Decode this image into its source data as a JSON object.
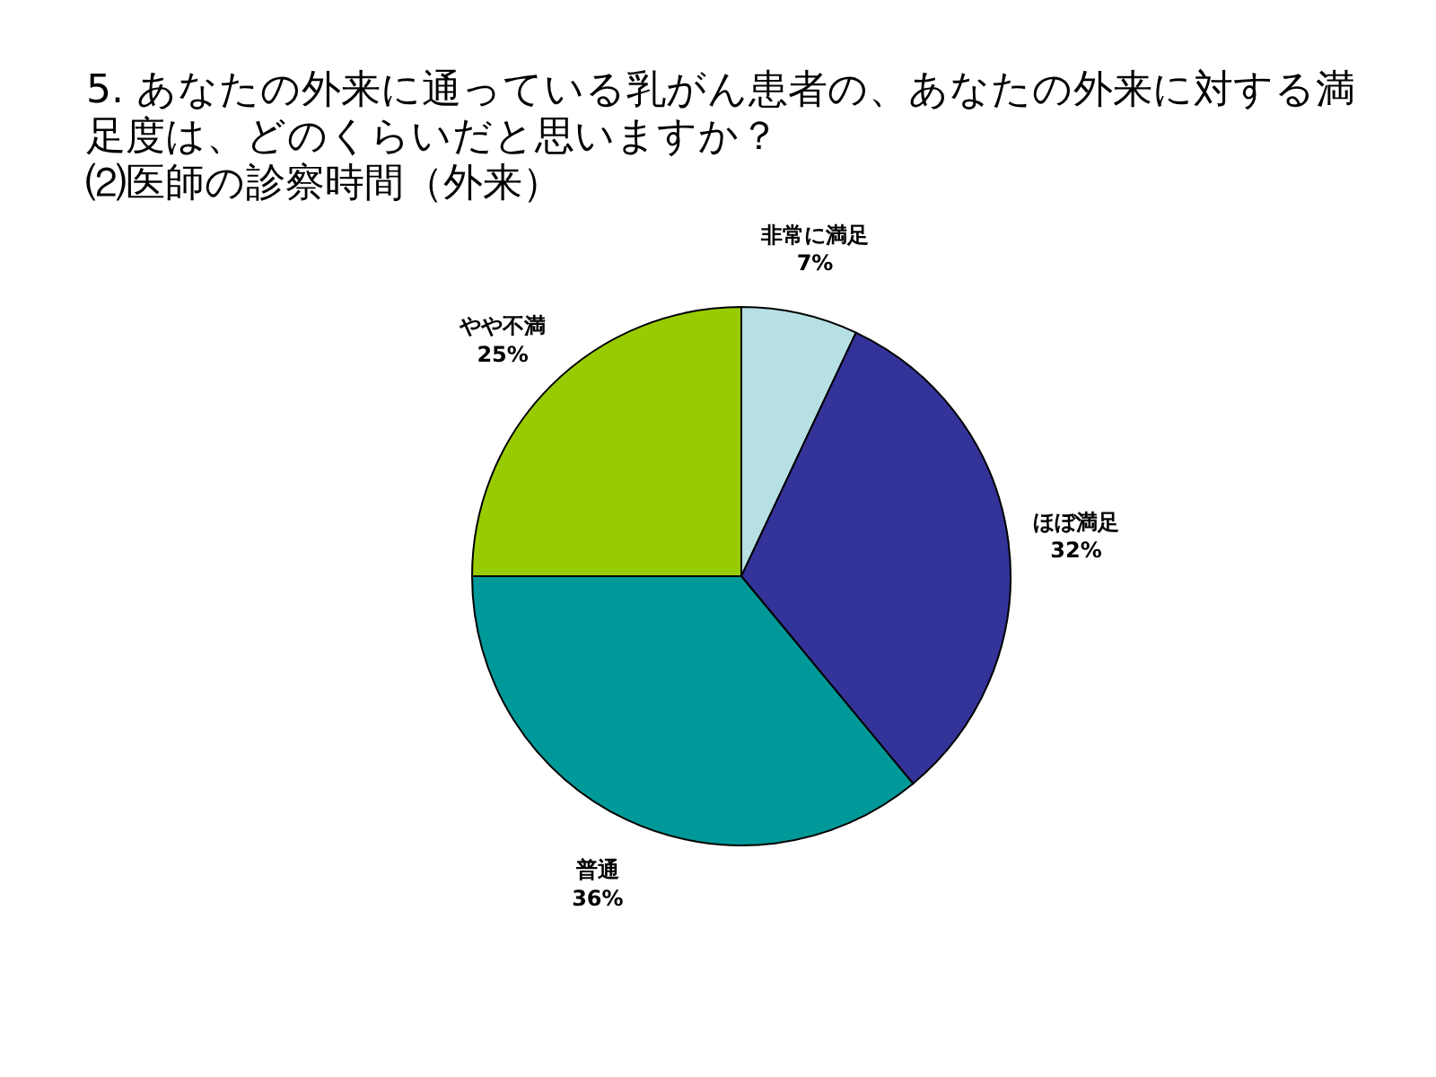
{
  "chart_data": {
    "type": "pie",
    "title": "5. あなたの外来に通っている乳がん患者の、あなたの外来に対する満足度は、どのくらいだと思いますか？",
    "subtitle": "⑵医師の診察時間（外来）",
    "categories": [
      "非常に満足",
      "ほぼ満足",
      "普通",
      "やや不満"
    ],
    "values": [
      7,
      32,
      36,
      25
    ],
    "colors": [
      "#b7e0e4",
      "#333399",
      "#009999",
      "#99cc00"
    ],
    "value_labels": [
      "7%",
      "32%",
      "36%",
      "25%"
    ],
    "legend": false
  }
}
